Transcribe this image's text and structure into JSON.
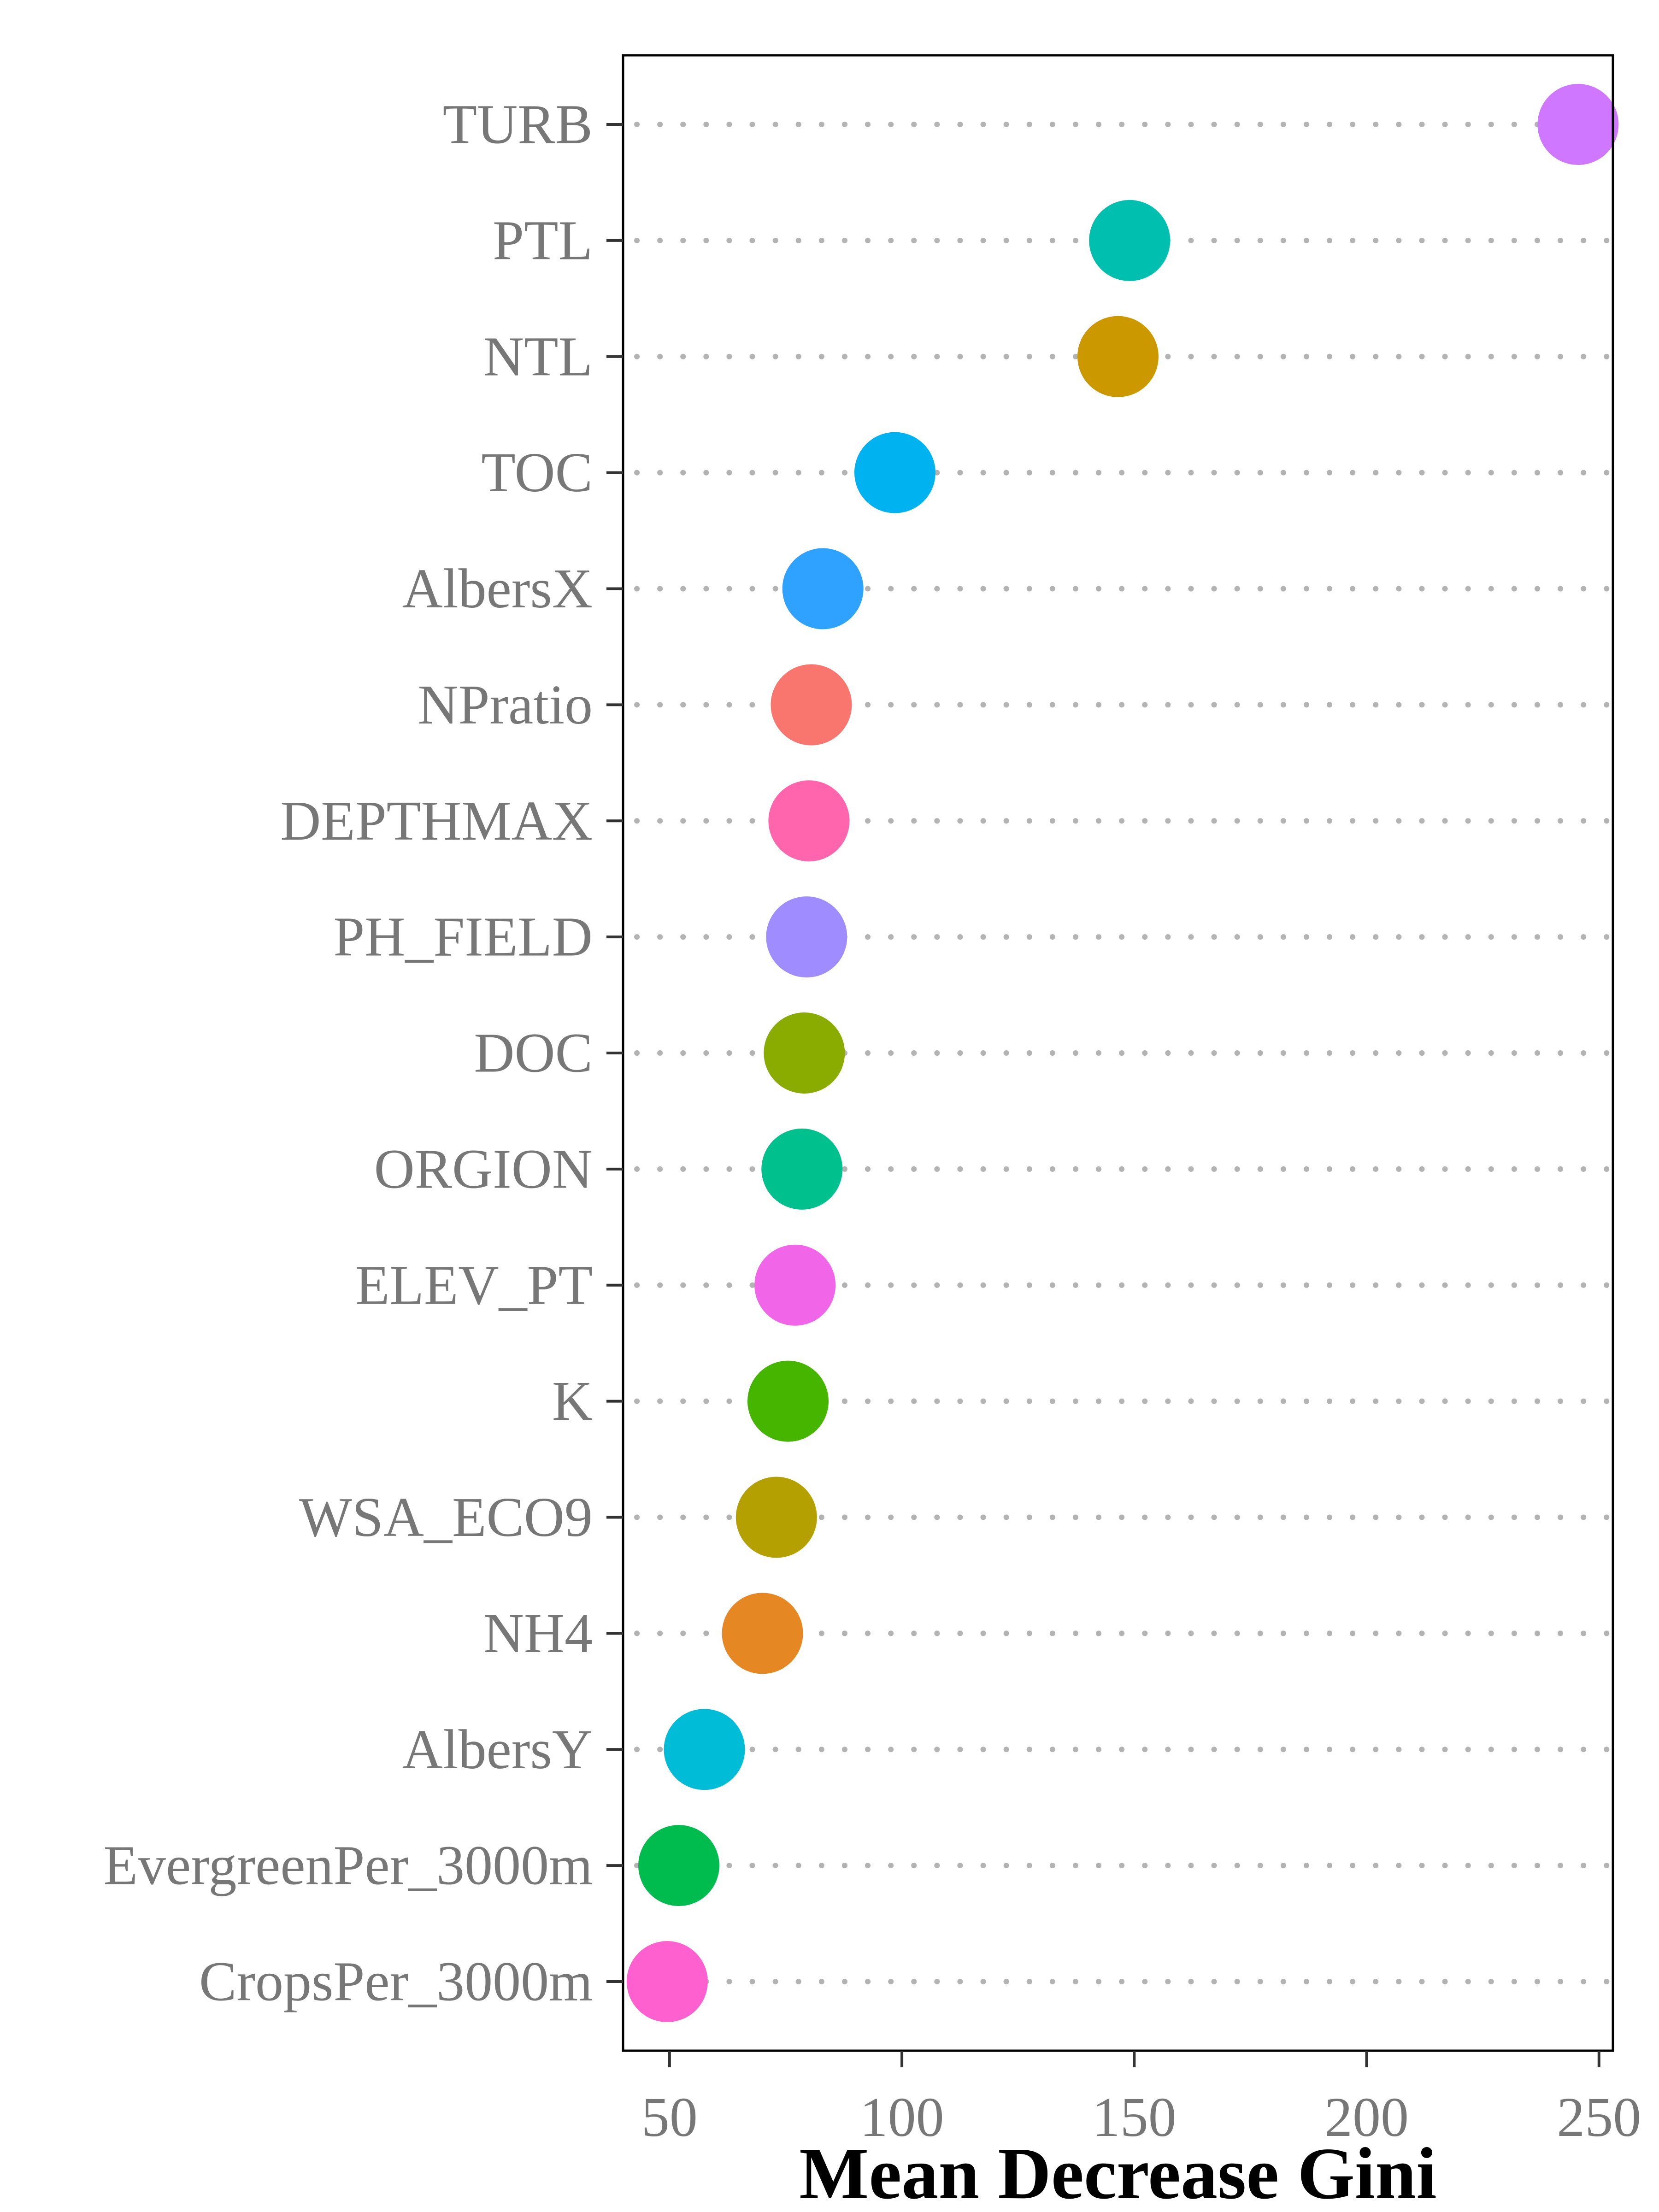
{
  "chart_data": {
    "type": "scatter",
    "style": "dot plot (Cleveland), dotted guide lines",
    "xlabel": "Mean Decrease Gini",
    "ylabel": "",
    "title": "",
    "xlim": [
      40,
      253
    ],
    "xticks": [
      50,
      100,
      150,
      200,
      250
    ],
    "xtick_labels": [
      "50",
      "100",
      "150",
      "200",
      "250"
    ],
    "grid": false,
    "legend": "none",
    "points": [
      {
        "label": "TURB",
        "value": 245.5,
        "color": "#CF78FF"
      },
      {
        "label": "PTL",
        "value": 149,
        "color": "#00BFAF"
      },
      {
        "label": "NTL",
        "value": 146.5,
        "color": "#CC9800"
      },
      {
        "label": "TOC",
        "value": 98.5,
        "color": "#00B2F0"
      },
      {
        "label": "AlbersX",
        "value": 83,
        "color": "#2FA2FF"
      },
      {
        "label": "NPratio",
        "value": 80.5,
        "color": "#F8766D"
      },
      {
        "label": "DEPTHMAX",
        "value": 80,
        "color": "#FF65AC"
      },
      {
        "label": "PH_FIELD",
        "value": 79.5,
        "color": "#9F8DFF"
      },
      {
        "label": "DOC",
        "value": 79,
        "color": "#8AAB00"
      },
      {
        "label": "ORGION",
        "value": 78.5,
        "color": "#00C08D"
      },
      {
        "label": "ELEV_PT",
        "value": 77,
        "color": "#F166E8"
      },
      {
        "label": "K",
        "value": 75.5,
        "color": "#45B500"
      },
      {
        "label": "WSA_ECO9",
        "value": 73,
        "color": "#B4A000"
      },
      {
        "label": "NH4",
        "value": 70,
        "color": "#E58723"
      },
      {
        "label": "AlbersY",
        "value": 57.5,
        "color": "#00BCD7"
      },
      {
        "label": "EvergreenPer_3000m",
        "value": 52,
        "color": "#00BB4E"
      },
      {
        "label": "CropsPer_3000m",
        "value": 49.5,
        "color": "#FF60D0"
      }
    ]
  }
}
